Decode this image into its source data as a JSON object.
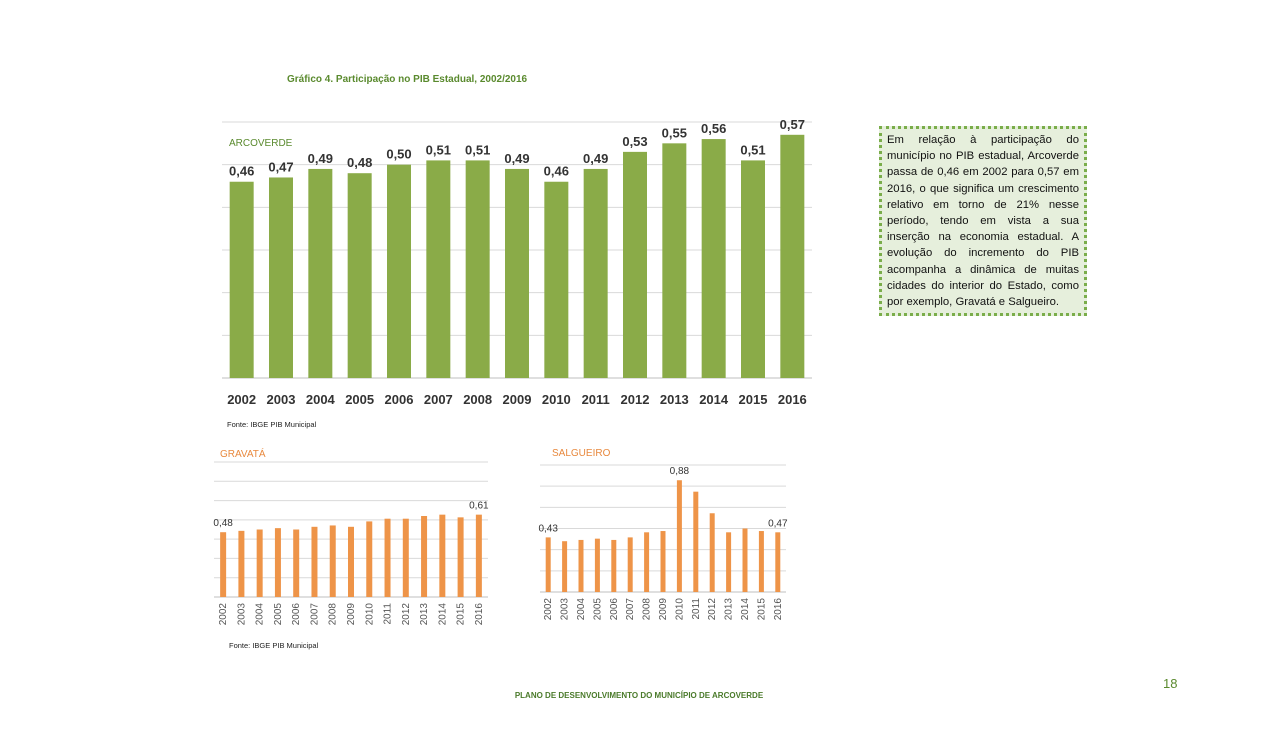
{
  "page": {
    "title": "Gráfico 4. Participação  no PIB Estadual, 2002/2016",
    "source_main": "Fonte: IBGE PIB Municipal",
    "source_bottom": "Fonte: IBGE PIB Municipal",
    "footer": "PLANO DE DESENVOLVIMENTO DO MUNICÍPIO DE ARCOVERDE",
    "page_number": "18",
    "description": "Em relação à participação do município   no PIB estadual, Arcoverde passa de 0,46 em 2002 para 0,57 em 2016, o que significa um crescimento relativo em torno de 21% nesse período, tendo em vista  a sua inserção na economia estadual.  A evolução do incremento do PIB acompanha a dinâmica de muitas cidades do interior do Estado, como por exemplo, Gravatá e Salgueiro."
  },
  "colors": {
    "arcoverde": "#8aab48",
    "gravata": "#ee9448",
    "salgueiro": "#ee9448",
    "gravata_label": "#e8893e",
    "salgueiro_label": "#e8893e",
    "arcoverde_label": "#5a8a2e"
  },
  "chart_data": [
    {
      "type": "bar",
      "label": "ARCOVERDE",
      "categories": [
        "2002",
        "2003",
        "2004",
        "2005",
        "2006",
        "2007",
        "2008",
        "2009",
        "2010",
        "2011",
        "2012",
        "2013",
        "2014",
        "2015",
        "2016"
      ],
      "values": [
        0.46,
        0.47,
        0.49,
        0.48,
        0.5,
        0.51,
        0.51,
        0.49,
        0.46,
        0.49,
        0.53,
        0.55,
        0.56,
        0.51,
        0.57
      ],
      "data_labels": [
        "0,46",
        "0,47",
        "0,49",
        "0,48",
        "0,50",
        "0,51",
        "0,51",
        "0,49",
        "0,46",
        "0,49",
        "0,53",
        "0,55",
        "0,56",
        "0,51",
        "0,57"
      ],
      "ylim": [
        0,
        0.6
      ],
      "grid": true,
      "legend": "none"
    },
    {
      "type": "bar",
      "label": "GRAVATÁ",
      "categories": [
        "2002",
        "2003",
        "2004",
        "2005",
        "2006",
        "2007",
        "2008",
        "2009",
        "2010",
        "2011",
        "2012",
        "2013",
        "2014",
        "2015",
        "2016"
      ],
      "values": [
        0.48,
        0.49,
        0.5,
        0.51,
        0.5,
        0.52,
        0.53,
        0.52,
        0.56,
        0.58,
        0.58,
        0.6,
        0.61,
        0.59,
        0.61
      ],
      "data_labels": [
        "0,48",
        "",
        "",
        "",
        "",
        "",
        "",
        "",
        "",
        "",
        "",
        "",
        "",
        "",
        "0,61"
      ],
      "ylim": [
        0,
        1.0
      ],
      "grid": true,
      "legend": "none"
    },
    {
      "type": "bar",
      "label": "SALGUEIRO",
      "categories": [
        "2002",
        "2003",
        "2004",
        "2005",
        "2006",
        "2007",
        "2008",
        "2009",
        "2010",
        "2011",
        "2012",
        "2013",
        "2014",
        "2015",
        "2016"
      ],
      "values": [
        0.43,
        0.4,
        0.41,
        0.42,
        0.41,
        0.43,
        0.47,
        0.48,
        0.88,
        0.79,
        0.62,
        0.47,
        0.5,
        0.48,
        0.47
      ],
      "data_labels": [
        "0,43",
        "",
        "",
        "",
        "",
        "",
        "",
        "",
        "0,88",
        "",
        "",
        "",
        "",
        "",
        "0,47"
      ],
      "ylim": [
        0,
        1.0
      ],
      "grid": true,
      "legend": "none"
    }
  ]
}
